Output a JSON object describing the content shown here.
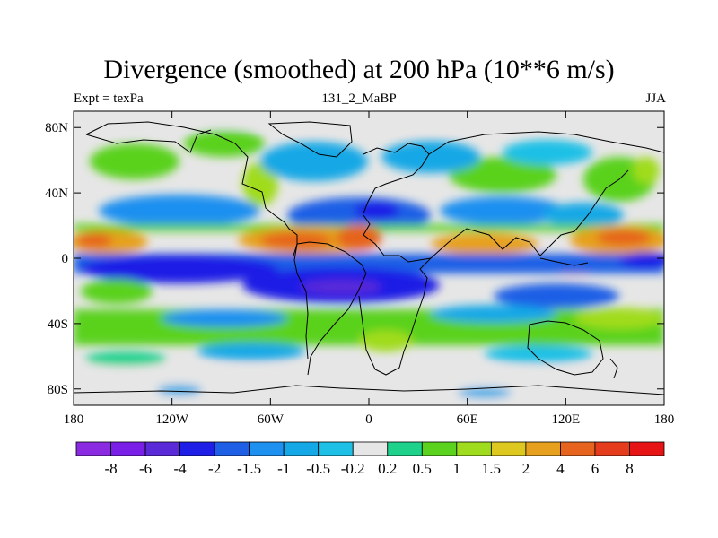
{
  "title": "Divergence (smoothed) at 200 hPa (10**6 m/s)",
  "subtitle_left": "Expt = texPa",
  "subtitle_center": "131_2_MaBP",
  "subtitle_right": "JJA",
  "chart_data": {
    "type": "heatmap",
    "title": "Divergence (smoothed) at 200 hPa (10**6 m/s)",
    "variable": "Divergence (smoothed)",
    "level": "200 hPa",
    "units": "10**6 m/s",
    "season": "JJA",
    "experiment": "texPa",
    "run": "131_2_MaBP",
    "projection": "cylindrical equidistant",
    "lon_range": [
      -180,
      180
    ],
    "lat_range": [
      -90,
      90
    ],
    "x_ticks": [
      {
        "value": -180,
        "label": "180"
      },
      {
        "value": -120,
        "label": "120W"
      },
      {
        "value": -60,
        "label": "60W"
      },
      {
        "value": 0,
        "label": "0"
      },
      {
        "value": 60,
        "label": "60E"
      },
      {
        "value": 120,
        "label": "120E"
      },
      {
        "value": 180,
        "label": "180"
      }
    ],
    "y_ticks": [
      {
        "value": 80,
        "label": "80N"
      },
      {
        "value": 40,
        "label": "40N"
      },
      {
        "value": 0,
        "label": "0"
      },
      {
        "value": -40,
        "label": "40S"
      },
      {
        "value": -80,
        "label": "80S"
      }
    ],
    "colorbar": {
      "levels": [
        "-8",
        "-6",
        "-4",
        "-2",
        "-1.5",
        "-1",
        "-0.5",
        "-0.2",
        "0.2",
        "0.5",
        "1",
        "1.5",
        "2",
        "4",
        "6",
        "8"
      ],
      "colors": [
        "#8a2be2",
        "#7a1fe8",
        "#5a2ad8",
        "#1e1ee6",
        "#1e5fe6",
        "#1e90f0",
        "#14a8e6",
        "#1ec0e6",
        "#e6e6e6",
        "#1ed28c",
        "#5ad21e",
        "#a0dc1e",
        "#dcc81e",
        "#e6a01e",
        "#e6641e",
        "#e63c1e",
        "#e61414"
      ]
    }
  }
}
